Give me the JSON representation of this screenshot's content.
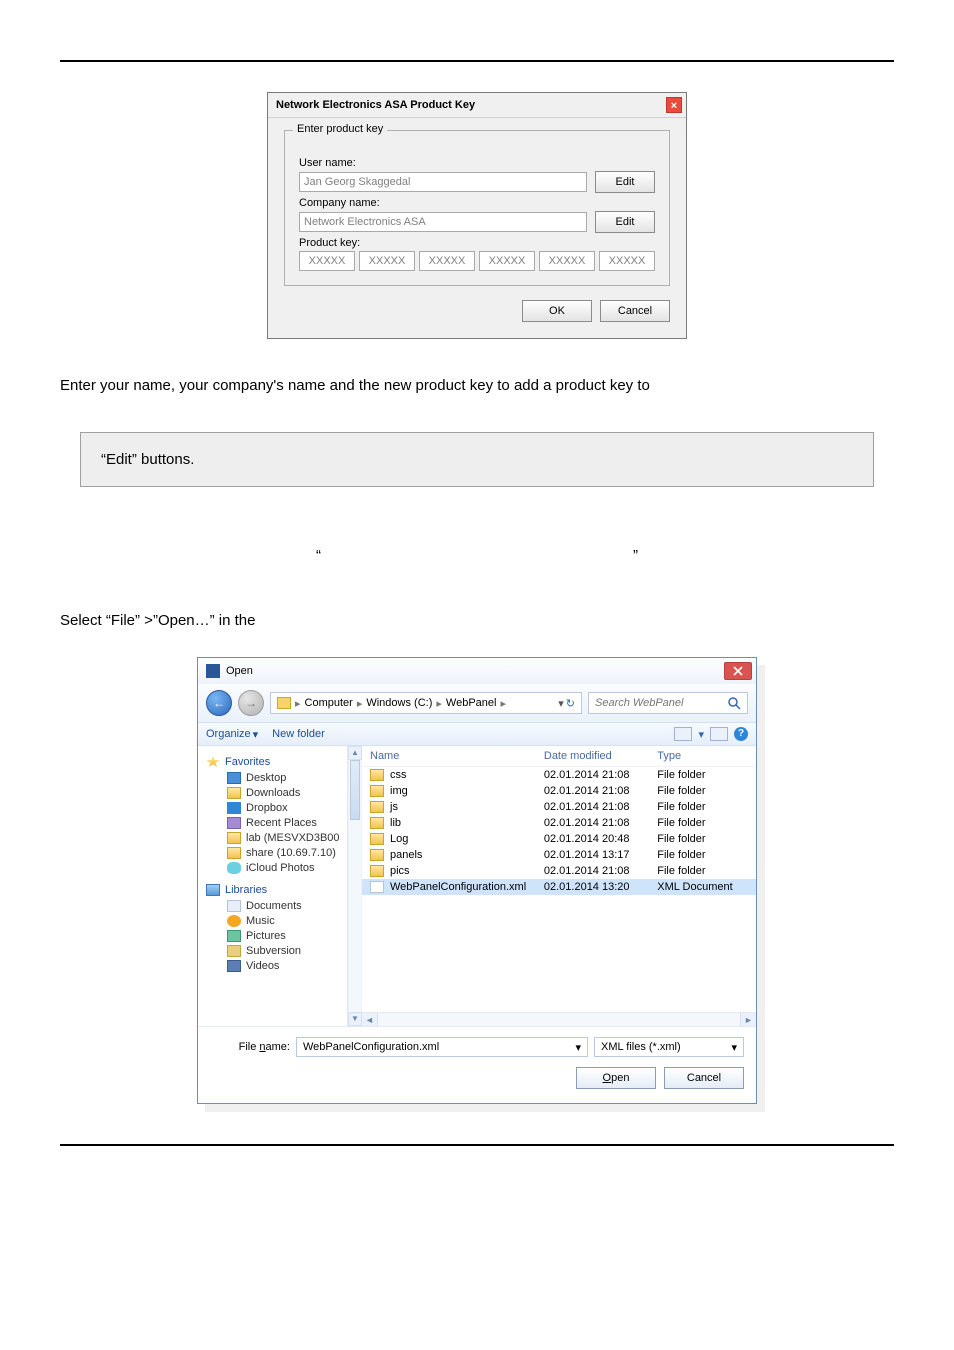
{
  "productKeyDialog": {
    "title": "Network Electronics ASA Product Key",
    "legend": "Enter product key",
    "usernameLabel": "User name:",
    "usernameValue": "Jan Georg Skaggedal",
    "companyLabel": "Company name:",
    "companyValue": "Network Electronics ASA",
    "keyLabel": "Product key:",
    "keyPlaceholder": "XXXXX",
    "editBtn": "Edit",
    "okBtn": "OK",
    "cancelBtn": "Cancel"
  },
  "prose1": "Enter your name, your company's name and the new product key to add a product key to",
  "quoteBox": "“Edit” buttons.",
  "quoteLeft": "“",
  "quoteRight": "”",
  "prose2": "Select “File” >”Open…” in the",
  "openDialog": {
    "title": "Open",
    "breadcrumb": [
      "Computer",
      "Windows (C:)",
      "WebPanel"
    ],
    "searchPlaceholder": "Search WebPanel",
    "organizeBtn": "Organize",
    "newFolderBtn": "New folder",
    "sidebarFavorites": "Favorites",
    "sidebarFavItems": [
      {
        "label": "Desktop",
        "icon": "i-desktop"
      },
      {
        "label": "Downloads",
        "icon": "i-folder"
      },
      {
        "label": "Dropbox",
        "icon": "i-dropbox"
      },
      {
        "label": "Recent Places",
        "icon": "i-recent"
      },
      {
        "label": "lab (MESVXD3B00",
        "icon": "i-folder"
      },
      {
        "label": "share (10.69.7.10)",
        "icon": "i-folder"
      },
      {
        "label": "iCloud Photos",
        "icon": "i-cloud"
      }
    ],
    "sidebarLibraries": "Libraries",
    "sidebarLibItems": [
      {
        "label": "Documents",
        "icon": "i-doc"
      },
      {
        "label": "Music",
        "icon": "i-music"
      },
      {
        "label": "Pictures",
        "icon": "i-pic"
      },
      {
        "label": "Subversion",
        "icon": "i-sub"
      },
      {
        "label": "Videos",
        "icon": "i-video"
      }
    ],
    "colName": "Name",
    "colDate": "Date modified",
    "colType": "Type",
    "files": [
      {
        "name": "css",
        "date": "02.01.2014 21:08",
        "type": "File folder",
        "icon": "i-folder"
      },
      {
        "name": "img",
        "date": "02.01.2014 21:08",
        "type": "File folder",
        "icon": "i-folder"
      },
      {
        "name": "js",
        "date": "02.01.2014 21:08",
        "type": "File folder",
        "icon": "i-folder"
      },
      {
        "name": "lib",
        "date": "02.01.2014 21:08",
        "type": "File folder",
        "icon": "i-folder"
      },
      {
        "name": "Log",
        "date": "02.01.2014 20:48",
        "type": "File folder",
        "icon": "i-folder"
      },
      {
        "name": "panels",
        "date": "02.01.2014 13:17",
        "type": "File folder",
        "icon": "i-folder"
      },
      {
        "name": "pics",
        "date": "02.01.2014 21:08",
        "type": "File folder",
        "icon": "i-folder"
      },
      {
        "name": "WebPanelConfiguration.xml",
        "date": "02.01.2014 13:20",
        "type": "XML Document",
        "icon": "i-xml",
        "selected": true
      }
    ],
    "filenameLabel": "File name:",
    "filenameValue": "WebPanelConfiguration.xml",
    "filterValue": "XML files (*.xml)",
    "openBtn": "Open",
    "cancelBtn": "Cancel"
  }
}
